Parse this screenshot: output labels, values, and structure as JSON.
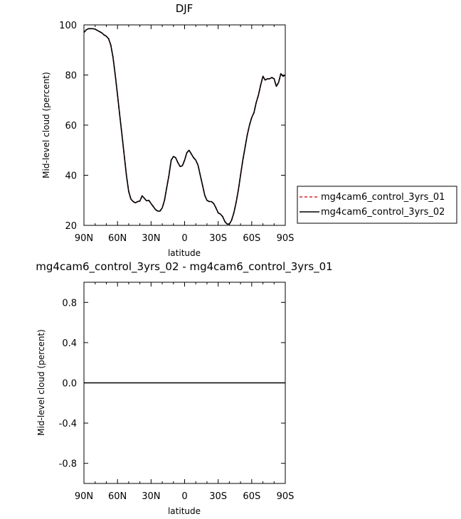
{
  "chart_data": [
    {
      "type": "line",
      "title": "DJF",
      "xlabel": "latitude",
      "ylabel": "Mid-level cloud (percent)",
      "xlim": [
        90,
        -90
      ],
      "ylim": [
        20,
        100
      ],
      "xticks": [
        {
          "v": 90,
          "label": "90N"
        },
        {
          "v": 60,
          "label": "60N"
        },
        {
          "v": 30,
          "label": "30N"
        },
        {
          "v": 0,
          "label": "0"
        },
        {
          "v": -30,
          "label": "30S"
        },
        {
          "v": -60,
          "label": "60S"
        },
        {
          "v": -90,
          "label": "90S"
        }
      ],
      "yticks": [
        {
          "v": 20,
          "label": "20"
        },
        {
          "v": 40,
          "label": "40"
        },
        {
          "v": 60,
          "label": "60"
        },
        {
          "v": 80,
          "label": "80"
        },
        {
          "v": 100,
          "label": "100"
        }
      ],
      "legend_position": "right",
      "x": [
        90,
        88,
        86,
        84,
        82,
        80,
        78,
        76,
        74,
        72,
        70,
        68,
        66,
        64,
        62,
        60,
        58,
        56,
        54,
        52,
        50,
        48,
        46,
        44,
        42,
        40,
        38,
        36,
        34,
        32,
        30,
        28,
        26,
        24,
        22,
        20,
        18,
        16,
        14,
        12,
        10,
        8,
        6,
        4,
        2,
        0,
        -2,
        -4,
        -6,
        -8,
        -10,
        -12,
        -14,
        -16,
        -18,
        -20,
        -22,
        -24,
        -26,
        -28,
        -30,
        -32,
        -34,
        -36,
        -38,
        -40,
        -42,
        -44,
        -46,
        -48,
        -50,
        -52,
        -54,
        -56,
        -58,
        -60,
        -62,
        -64,
        -66,
        -68,
        -70,
        -72,
        -74,
        -76,
        -78,
        -80,
        -82,
        -84,
        -86,
        -88,
        -90
      ],
      "series": [
        {
          "name": "mg4cam6_control_3yrs_01",
          "color": "#e0202a",
          "dash": "dashed",
          "values": [
            97,
            98,
            98.5,
            98.5,
            98.5,
            98.3,
            97.8,
            97.3,
            96.8,
            96,
            95.5,
            94.5,
            92,
            87,
            80,
            72,
            64,
            56,
            48,
            40,
            33.5,
            30.5,
            29.5,
            29,
            29.5,
            29.7,
            31.8,
            30.8,
            29.8,
            30,
            28.7,
            27.5,
            26.3,
            25.7,
            25.7,
            27,
            30,
            35,
            40,
            46,
            47.5,
            47,
            45,
            43.5,
            43.8,
            46,
            49,
            50,
            48.5,
            47,
            46,
            44,
            40,
            36,
            32,
            30,
            29.5,
            29.5,
            28.7,
            27,
            25,
            24.5,
            23.5,
            21.5,
            20.5,
            20.5,
            22,
            25,
            29,
            34,
            40,
            46,
            51,
            56,
            60,
            63,
            65,
            69,
            72,
            76,
            79.5,
            78,
            78.5,
            78.5,
            79,
            78.5,
            75.5,
            77,
            80.5,
            79.5,
            80
          ]
        },
        {
          "name": "mg4cam6_control_3yrs_02",
          "color": "#000000",
          "dash": "solid",
          "values": [
            97,
            98,
            98.5,
            98.5,
            98.5,
            98.3,
            97.8,
            97.3,
            96.8,
            96,
            95.5,
            94.5,
            92,
            87,
            80,
            72,
            64,
            56,
            48,
            40,
            33.5,
            30.5,
            29.5,
            29,
            29.5,
            29.7,
            31.8,
            30.8,
            29.8,
            30,
            28.7,
            27.5,
            26.3,
            25.7,
            25.7,
            27,
            30,
            35,
            40,
            46,
            47.5,
            47,
            45,
            43.5,
            43.8,
            46,
            49,
            50,
            48.5,
            47,
            46,
            44,
            40,
            36,
            32,
            30,
            29.5,
            29.5,
            28.7,
            27,
            25,
            24.5,
            23.5,
            21.5,
            20.5,
            20.5,
            22,
            25,
            29,
            34,
            40,
            46,
            51,
            56,
            60,
            63,
            65,
            69,
            72,
            76,
            79.5,
            78,
            78.5,
            78.5,
            79,
            78.5,
            75.5,
            77,
            80.5,
            79.5,
            80
          ]
        }
      ]
    },
    {
      "type": "line",
      "title": "mg4cam6_control_3yrs_02 - mg4cam6_control_3yrs_01",
      "xlabel": "latitude",
      "ylabel": "Mid-level cloud (percent)",
      "xlim": [
        90,
        -90
      ],
      "ylim": [
        -1,
        1
      ],
      "xticks": [
        {
          "v": 90,
          "label": "90N"
        },
        {
          "v": 60,
          "label": "60N"
        },
        {
          "v": 30,
          "label": "30N"
        },
        {
          "v": 0,
          "label": "0"
        },
        {
          "v": -30,
          "label": "30S"
        },
        {
          "v": -60,
          "label": "60S"
        },
        {
          "v": -90,
          "label": "90S"
        }
      ],
      "yticks": [
        {
          "v": 0.8,
          "label": "0.8"
        },
        {
          "v": 0.4,
          "label": "0.4"
        },
        {
          "v": 0,
          "label": "0.0"
        },
        {
          "v": -0.4,
          "label": "-0.4"
        },
        {
          "v": -0.8,
          "label": "-0.8"
        }
      ],
      "x": [
        90,
        -90
      ],
      "series": [
        {
          "color": "#000000",
          "dash": "solid",
          "values": [
            0,
            0
          ]
        }
      ]
    }
  ]
}
